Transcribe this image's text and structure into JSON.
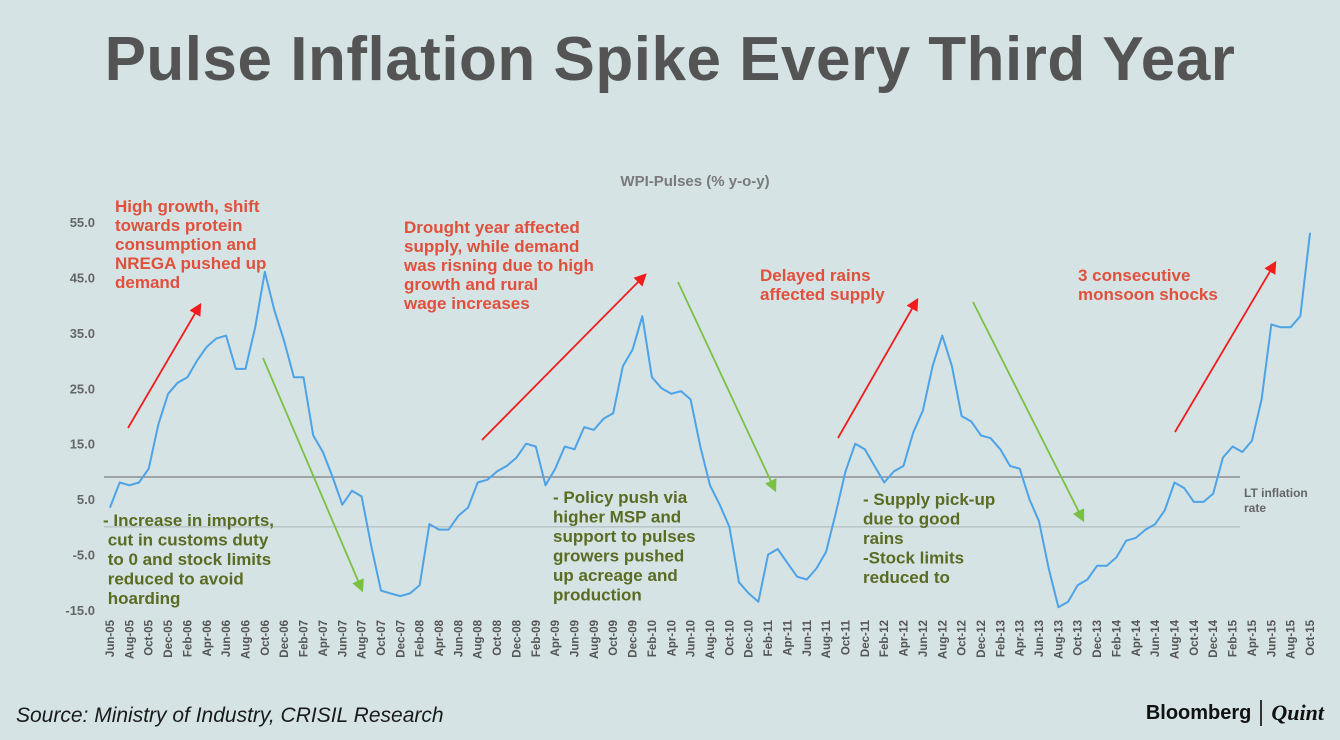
{
  "page": {
    "title": "Pulse Inflation Spike Every Third Year",
    "source": "Source: Ministry of Industry, CRISIL Research",
    "brand_left": "Bloomberg",
    "brand_right": "Quint"
  },
  "chart_data": {
    "type": "line",
    "title": "WPI-Pulses (% y-o-y)",
    "xlabel": "",
    "ylabel": "",
    "ylim": [
      -15,
      55
    ],
    "yticks": [
      55.0,
      45.0,
      35.0,
      25.0,
      15.0,
      5.0,
      -5.0,
      -15.0
    ],
    "ytick_labels": [
      "55.0",
      "45.0",
      "35.0",
      "25.0",
      "15.0",
      "5.0",
      "-5.0",
      "-15.0"
    ],
    "x_start": "Jun-05",
    "x_tick_labels": [
      "Jun-05",
      "Aug-05",
      "Oct-05",
      "Dec-05",
      "Feb-06",
      "Apr-06",
      "Jun-06",
      "Aug-06",
      "Oct-06",
      "Dec-06",
      "Feb-07",
      "Apr-07",
      "Jun-07",
      "Aug-07",
      "Oct-07",
      "Dec-07",
      "Feb-08",
      "Apr-08",
      "Jun-08",
      "Aug-08",
      "Oct-08",
      "Dec-08",
      "Feb-09",
      "Apr-09",
      "Jun-09",
      "Aug-09",
      "Oct-09",
      "Dec-09",
      "Feb-10",
      "Apr-10",
      "Jun-10",
      "Aug-10",
      "Oct-10",
      "Dec-10",
      "Feb-11",
      "Apr-11",
      "Jun-11",
      "Aug-11",
      "Oct-11",
      "Dec-11",
      "Feb-12",
      "Apr-12",
      "Jun-12",
      "Aug-12",
      "Oct-12",
      "Dec-12",
      "Feb-13",
      "Apr-13",
      "Jun-13",
      "Aug-13",
      "Oct-13",
      "Dec-13",
      "Feb-14",
      "Apr-14",
      "Jun-14",
      "Aug-14",
      "Oct-14",
      "Dec-14",
      "Feb-15",
      "Apr-15",
      "Jun-15",
      "Aug-15",
      "Oct-15"
    ],
    "series": [
      {
        "name": "WPI-Pulses",
        "color": "#4da3e6",
        "values": [
          3.5,
          8.0,
          7.5,
          8.0,
          10.5,
          18.5,
          24.0,
          26.0,
          27.0,
          30.0,
          32.5,
          34.0,
          34.5,
          28.5,
          28.5,
          36.0,
          46.0,
          39.0,
          33.5,
          27.0,
          27.0,
          16.5,
          13.5,
          9.0,
          4.0,
          6.5,
          5.5,
          -3.5,
          -11.5,
          -12.0,
          -12.5,
          -12.0,
          -10.5,
          0.5,
          -0.5,
          -0.5,
          2.0,
          3.5,
          8.0,
          8.5,
          10.0,
          11.0,
          12.5,
          15.0,
          14.5,
          7.5,
          10.5,
          14.5,
          14.0,
          18.0,
          17.5,
          19.5,
          20.5,
          29.0,
          32.0,
          38.0,
          27.0,
          25.0,
          24.0,
          24.5,
          23.0,
          14.5,
          7.5,
          4.0,
          0.0,
          -10.0,
          -12.0,
          -13.5,
          -5.0,
          -4.0,
          -6.5,
          -9.0,
          -9.5,
          -7.5,
          -4.5,
          2.5,
          10.0,
          15.0,
          14.0,
          11.0,
          8.0,
          10.0,
          11.0,
          17.0,
          21.0,
          29.0,
          34.5,
          29.0,
          20.0,
          19.0,
          16.5,
          16.0,
          14.0,
          11.0,
          10.5,
          5.0,
          1.0,
          -7.5,
          -14.5,
          -13.5,
          -10.5,
          -9.5,
          -7.0,
          -7.0,
          -5.5,
          -2.5,
          -2.0,
          -0.5,
          0.5,
          3.0,
          8.0,
          7.0,
          4.5,
          4.5,
          6.0,
          12.5,
          14.5,
          13.5,
          15.5,
          23.0,
          36.5,
          36.0,
          36.0,
          38.0,
          53.0
        ]
      }
    ],
    "reference_lines": [
      {
        "label": "LT inflation rate",
        "value": 9.0
      },
      {
        "label": "",
        "value": 0.0
      }
    ],
    "annotations": [
      {
        "id": "ann1",
        "color": "#e0503c",
        "lines": [
          "High growth, shift",
          "towards protein",
          "consumption and",
          "NREGA pushed up",
          "demand"
        ]
      },
      {
        "id": "ann2",
        "color": "#e0503c",
        "lines": [
          "Drought year affected",
          "supply, while demand",
          "was risning due to high",
          "growth and rural",
          "wage increases"
        ]
      },
      {
        "id": "ann3",
        "color": "#e0503c",
        "lines": [
          "Delayed rains",
          "affected supply"
        ]
      },
      {
        "id": "ann4",
        "color": "#e0503c",
        "lines": [
          "3 consecutive",
          "monsoon shocks"
        ]
      },
      {
        "id": "ann5",
        "color": "#5a6b22",
        "lines": [
          "- Increase in imports,",
          "  cut in customs duty",
          "  to 0 and stock limits",
          "  reduced to avoid",
          "  hoarding"
        ]
      },
      {
        "id": "ann6",
        "color": "#5a6b22",
        "lines": [
          "- Policy push via",
          "higher MSP and",
          "support to pulses",
          "growers pushed",
          "up acreage and",
          "production"
        ]
      },
      {
        "id": "ann7",
        "color": "#5a6b22",
        "lines": [
          "- Supply pick-up",
          "due to good",
          "rains",
          "-Stock limits",
          "reduced to"
        ]
      }
    ],
    "trend_arrows": [
      {
        "direction": "up",
        "color": "#f21c1c"
      },
      {
        "direction": "down",
        "color": "#7ac143"
      },
      {
        "direction": "up",
        "color": "#f21c1c"
      },
      {
        "direction": "down",
        "color": "#7ac143"
      },
      {
        "direction": "up",
        "color": "#f21c1c"
      },
      {
        "direction": "down",
        "color": "#7ac143"
      },
      {
        "direction": "up",
        "color": "#f21c1c"
      }
    ]
  }
}
